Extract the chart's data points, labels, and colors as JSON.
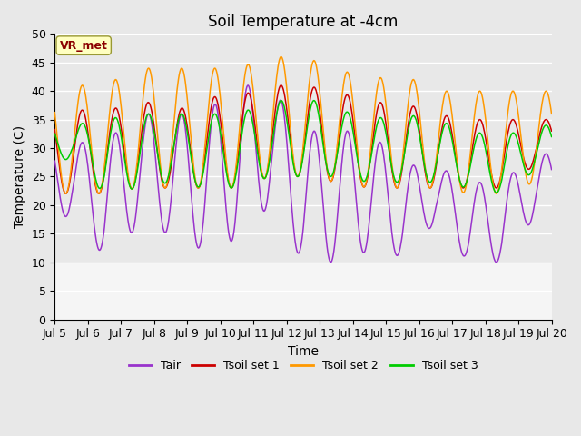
{
  "title": "Soil Temperature at -4cm",
  "xlabel": "Time",
  "ylabel": "Temperature (C)",
  "ylim": [
    0,
    50
  ],
  "yticks": [
    0,
    5,
    10,
    15,
    20,
    25,
    30,
    35,
    40,
    45,
    50
  ],
  "xtick_labels": [
    "Jul 5",
    "Jul 6",
    "Jul 7",
    "Jul 8",
    "Jul 9",
    "Jul 10",
    "Jul 11",
    "Jul 12",
    "Jul 13",
    "Jul 14",
    "Jul 15",
    "Jul 16",
    "Jul 17",
    "Jul 18",
    "Jul 19",
    "Jul 20"
  ],
  "annotation_text": "VR_met",
  "annotation_color": "#8B0000",
  "annotation_bg": "#FFFFC0",
  "colors": {
    "Tair": "#9933CC",
    "Tsoil1": "#CC0000",
    "Tsoil2": "#FF9900",
    "Tsoil3": "#00CC00"
  },
  "legend_labels": [
    "Tair",
    "Tsoil set 1",
    "Tsoil set 2",
    "Tsoil set 3"
  ],
  "bg_color": "#E8E8E8",
  "plot_bg_color": "#E8E8E8",
  "grid_color": "#FFFFFF",
  "below_grid_color": "#FFFFFF",
  "title_fontsize": 12,
  "axis_fontsize": 10,
  "tick_fontsize": 9,
  "n_days": 15,
  "pts_per_day": 48
}
